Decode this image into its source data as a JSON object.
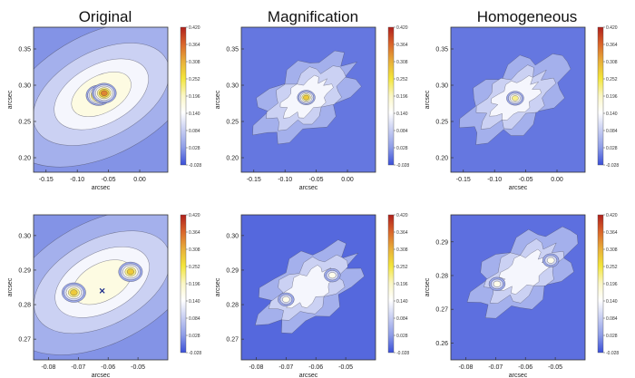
{
  "figure": {
    "columns": [
      "Original",
      "Magnification",
      "Homogeneous"
    ]
  },
  "colorbar": {
    "ticks": [
      "0.420",
      "0.364",
      "0.308",
      "0.252",
      "0.196",
      "0.140",
      "0.084",
      "0.028",
      "-0.028"
    ],
    "colors": [
      "#b0201c",
      "#d9642a",
      "#e8b03a",
      "#f3e53a",
      "#fbf7c8",
      "#ffffff",
      "#c5ccf2",
      "#8f9ee8",
      "#3a4fd8"
    ]
  },
  "chart_data": [
    {
      "type": "heatmap",
      "title": "Original",
      "xlabel": "arcsec",
      "ylabel": "arcsec",
      "x_ticks": [
        "-0.15",
        "-0.10",
        "-0.05",
        "0.00"
      ],
      "y_ticks": [
        "0.35",
        "0.30",
        "0.25",
        "0.20"
      ],
      "xlim": [
        -0.17,
        0.045
      ],
      "ylim": [
        0.18,
        0.38
      ],
      "zlim": [
        -0.028,
        0.42
      ],
      "peaks": [
        {
          "x": -0.066,
          "y": 0.286,
          "value": 0.42
        },
        {
          "x": -0.057,
          "y": 0.289,
          "value": 0.36
        }
      ],
      "background_value": 0.02
    },
    {
      "type": "heatmap",
      "title": "Magnification",
      "xlabel": "arcsec",
      "ylabel": "arcsec",
      "x_ticks": [
        "-0.15",
        "-0.10",
        "-0.05",
        "0.00"
      ],
      "y_ticks": [
        "0.35",
        "0.30",
        "0.25",
        "0.20"
      ],
      "xlim": [
        -0.17,
        0.045
      ],
      "ylim": [
        0.18,
        0.38
      ],
      "zlim": [
        -0.028,
        0.42
      ],
      "peaks": [
        {
          "x": -0.066,
          "y": 0.283,
          "value": 0.28
        }
      ],
      "background_value": 0.0
    },
    {
      "type": "heatmap",
      "title": "Homogeneous",
      "xlabel": "arcsec",
      "ylabel": "arcsec",
      "x_ticks": [
        "-0.15",
        "-0.10",
        "-0.05",
        "0.00"
      ],
      "y_ticks": [
        "0.35",
        "0.30",
        "0.25",
        "0.20"
      ],
      "xlim": [
        -0.17,
        0.045
      ],
      "ylim": [
        0.18,
        0.38
      ],
      "zlim": [
        -0.028,
        0.42
      ],
      "peaks": [
        {
          "x": -0.067,
          "y": 0.282,
          "value": 0.26
        }
      ],
      "background_value": 0.0
    },
    {
      "type": "heatmap",
      "title": "Original",
      "xlabel": "arcsec",
      "ylabel": "arcsec",
      "x_ticks": [
        "-0.08",
        "-0.07",
        "-0.06",
        "-0.05"
      ],
      "y_ticks": [
        "0.30",
        "0.29",
        "0.28",
        "0.27"
      ],
      "xlim": [
        -0.085,
        -0.04
      ],
      "ylim": [
        0.264,
        0.306
      ],
      "zlim": [
        -0.028,
        0.42
      ],
      "peaks": [
        {
          "x": -0.0715,
          "y": 0.2835,
          "value": 0.3
        },
        {
          "x": -0.0525,
          "y": 0.2895,
          "value": 0.3
        }
      ],
      "marker": {
        "x": -0.062,
        "y": 0.284,
        "symbol": "x"
      },
      "background_value": 0.02
    },
    {
      "type": "heatmap",
      "title": "Magnification",
      "xlabel": "arcsec",
      "ylabel": "arcsec",
      "x_ticks": [
        "-0.08",
        "-0.07",
        "-0.06",
        "-0.05"
      ],
      "y_ticks": [
        "0.30",
        "0.29",
        "0.28",
        "0.27"
      ],
      "xlim": [
        -0.085,
        -0.04
      ],
      "ylim": [
        0.264,
        0.306
      ],
      "zlim": [
        -0.028,
        0.42
      ],
      "peaks": [
        {
          "x": -0.07,
          "y": 0.2815,
          "value": 0.16
        },
        {
          "x": -0.0545,
          "y": 0.2885,
          "value": 0.16
        }
      ],
      "background_value": -0.01
    },
    {
      "type": "heatmap",
      "title": "Homogeneous",
      "xlabel": "arcsec",
      "ylabel": "arcsec",
      "x_ticks": [
        "-0.08",
        "-0.07",
        "-0.06",
        "-0.05"
      ],
      "y_ticks": [
        "0.29",
        "0.28",
        "0.27",
        "0.26"
      ],
      "xlim": [
        -0.085,
        -0.04
      ],
      "ylim": [
        0.255,
        0.298
      ],
      "zlim": [
        -0.028,
        0.42
      ],
      "peaks": [
        {
          "x": -0.0695,
          "y": 0.2775,
          "value": 0.16
        },
        {
          "x": -0.0515,
          "y": 0.2845,
          "value": 0.2
        }
      ],
      "background_value": -0.005
    }
  ]
}
